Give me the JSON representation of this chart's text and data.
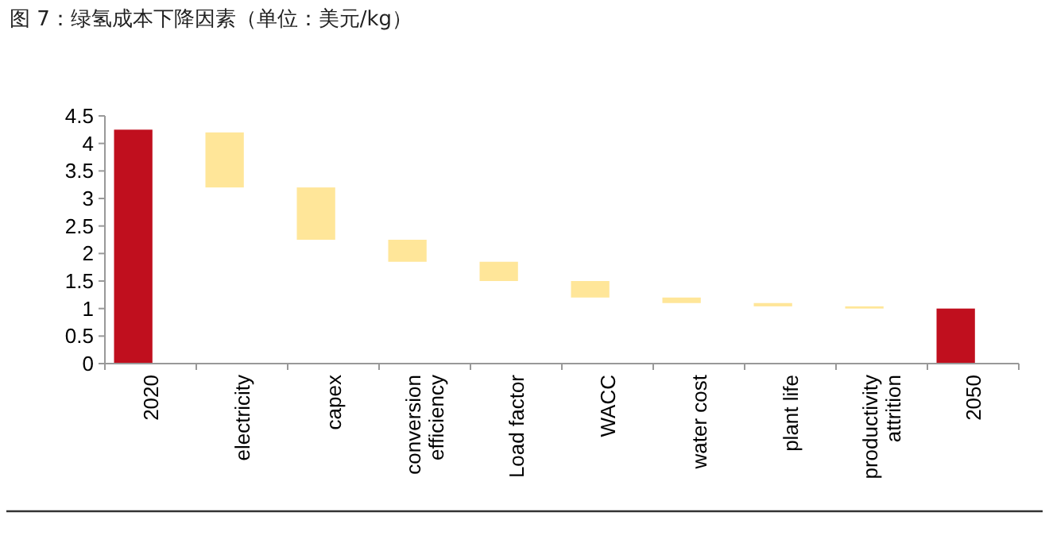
{
  "chart_data": {
    "type": "bar",
    "title": "图 7：绿氢成本下降因素（单位：美元/kg）",
    "categories": [
      "2020",
      "electricity",
      "capex",
      "conversion efficiency",
      "Load factor",
      "WACC",
      "water cost",
      "plant life",
      "productivity attrition",
      "2050"
    ],
    "values": [
      4.25,
      1.0,
      0.95,
      0.4,
      0.35,
      0.3,
      0.1,
      0.06,
      0.04,
      1.0
    ],
    "base": [
      0,
      3.2,
      2.25,
      1.85,
      1.5,
      1.2,
      1.1,
      1.04,
      1.0,
      0
    ],
    "colors": [
      "#c00f1e",
      "#ffe699",
      "#ffe699",
      "#ffe699",
      "#ffe699",
      "#ffe699",
      "#ffe699",
      "#ffe699",
      "#ffe699",
      "#c00f1e"
    ],
    "ylim": [
      0,
      4.5
    ],
    "yticks": [
      0,
      0.5,
      1,
      1.5,
      2,
      2.5,
      3,
      3.5,
      4,
      4.5
    ],
    "grid": false
  }
}
